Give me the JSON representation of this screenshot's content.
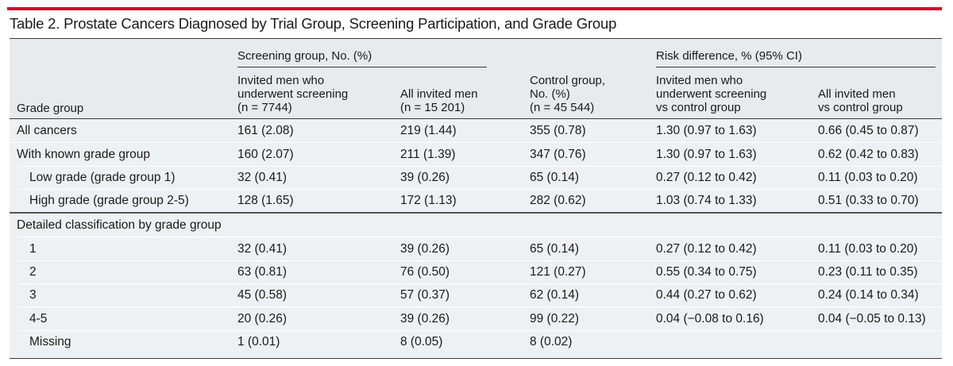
{
  "title": "Table 2. Prostate Cancers Diagnosed by Trial Group, Screening Participation, and Grade Group",
  "colors": {
    "accent_bar": "#c8102e",
    "table_bg": "#eef1f3"
  },
  "header": {
    "screening_span": "Screening group, No. (%)",
    "risk_span": "Risk difference, % (95% CI)",
    "grade_group": "Grade group",
    "col1": [
      "Invited men who",
      "underwent screening",
      "(n = 7744)"
    ],
    "col2": [
      "All invited men",
      "(n = 15 201)"
    ],
    "col3": [
      "Control group,",
      "No. (%)",
      "(n = 45 544)"
    ],
    "col4": [
      "Invited men who",
      "underwent screening",
      "vs control group"
    ],
    "col5": [
      "All invited men",
      "vs control group"
    ]
  },
  "rows": [
    {
      "label": "All cancers",
      "indent": false,
      "cells": [
        "161 (2.08)",
        "219 (1.44)",
        "355 (0.78)",
        "1.30 (0.97 to 1.63)",
        "0.66 (0.45 to 0.87)"
      ]
    },
    {
      "label": "With known grade group",
      "indent": false,
      "cells": [
        "160 (2.07)",
        "211 (1.39)",
        "347 (0.76)",
        "1.30 (0.97 to 1.63)",
        "0.62 (0.42 to 0.83)"
      ]
    },
    {
      "label": "Low grade (grade group 1)",
      "indent": true,
      "cells": [
        "32 (0.41)",
        "39 (0.26)",
        "65 (0.14)",
        "0.27 (0.12 to 0.42)",
        "0.11 (0.03 to 0.20)"
      ]
    },
    {
      "label": "High grade (grade group 2-5)",
      "indent": true,
      "cells": [
        "128 (1.65)",
        "172 (1.13)",
        "282 (0.62)",
        "1.03 (0.74 to 1.33)",
        "0.51 (0.33 to 0.70)"
      ]
    },
    {
      "label": "Detailed classification by grade group",
      "indent": false,
      "section": true,
      "cells": [
        "",
        "",
        "",
        "",
        ""
      ]
    },
    {
      "label": "1",
      "indent": true,
      "cells": [
        "32 (0.41)",
        "39 (0.26)",
        "65 (0.14)",
        "0.27 (0.12 to 0.42)",
        "0.11 (0.03 to 0.20)"
      ]
    },
    {
      "label": "2",
      "indent": true,
      "cells": [
        "63 (0.81)",
        "76 (0.50)",
        "121 (0.27)",
        "0.55 (0.34 to 0.75)",
        "0.23 (0.11 to 0.35)"
      ]
    },
    {
      "label": "3",
      "indent": true,
      "cells": [
        "45 (0.58)",
        "57 (0.37)",
        "62 (0.14)",
        "0.44 (0.27 to 0.62)",
        "0.24 (0.14 to 0.34)"
      ]
    },
    {
      "label": "4-5",
      "indent": true,
      "cells": [
        "20 (0.26)",
        "39 (0.26)",
        "99 (0.22)",
        "0.04 (−0.08 to 0.16)",
        "0.04 (−0.05 to 0.13)"
      ]
    },
    {
      "label": "Missing",
      "indent": true,
      "cells": [
        "1 (0.01)",
        "8 (0.05)",
        "8 (0.02)",
        "",
        ""
      ]
    }
  ]
}
